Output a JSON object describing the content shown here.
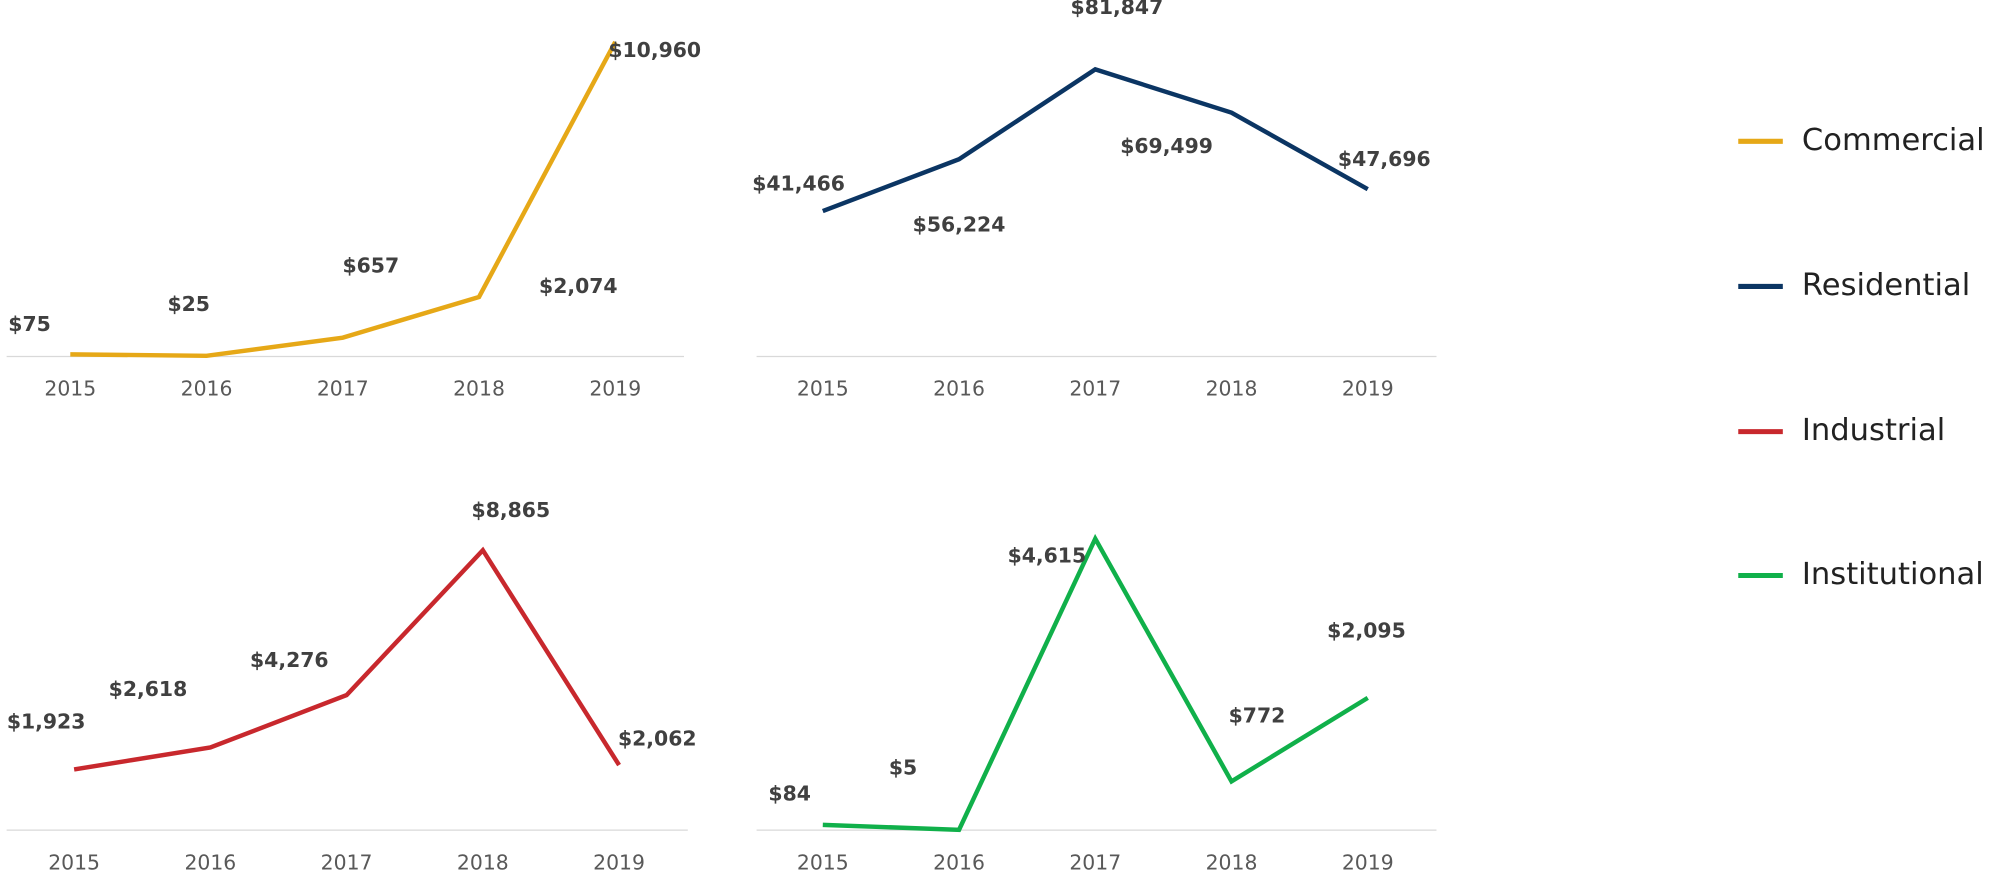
{
  "chart_data": [
    {
      "type": "line",
      "categories": [
        "2015",
        "2016",
        "2017",
        "2018",
        "2019"
      ],
      "ylim": [
        0,
        11000
      ],
      "series": [
        {
          "name": "Commercial",
          "color": "#e6a817",
          "values": [
            75,
            25,
            657,
            2074,
            10960
          ],
          "value_labels": [
            "$75",
            "$25",
            "$657",
            "$2,074",
            "$10,960"
          ]
        }
      ]
    },
    {
      "type": "line",
      "categories": [
        "2015",
        "2016",
        "2017",
        "2018",
        "2019"
      ],
      "ylim": [
        0,
        90000
      ],
      "series": [
        {
          "name": "Residential",
          "color": "#0b3563",
          "values": [
            41466,
            56224,
            81847,
            69499,
            47696
          ],
          "value_labels": [
            "$41,466",
            "$56,224",
            "$81,847",
            "$69,499",
            "$47,696"
          ]
        }
      ]
    },
    {
      "type": "line",
      "categories": [
        "2015",
        "2016",
        "2017",
        "2018",
        "2019"
      ],
      "ylim": [
        0,
        10000
      ],
      "series": [
        {
          "name": "Industrial",
          "color": "#c8282d",
          "values": [
            1923,
            2618,
            4276,
            8865,
            2062
          ],
          "value_labels": [
            "$1,923",
            "$2,618",
            "$4,276",
            "$8,865",
            "$2,062"
          ]
        }
      ]
    },
    {
      "type": "line",
      "categories": [
        "2015",
        "2016",
        "2017",
        "2018",
        "2019"
      ],
      "ylim": [
        0,
        5000
      ],
      "series": [
        {
          "name": "Institutional",
          "color": "#10b04a",
          "values": [
            84,
            5,
            4615,
            772,
            2095
          ],
          "value_labels": [
            "$84",
            "$5",
            "$4,615",
            "$772",
            "$2,095"
          ]
        }
      ]
    }
  ]
}
